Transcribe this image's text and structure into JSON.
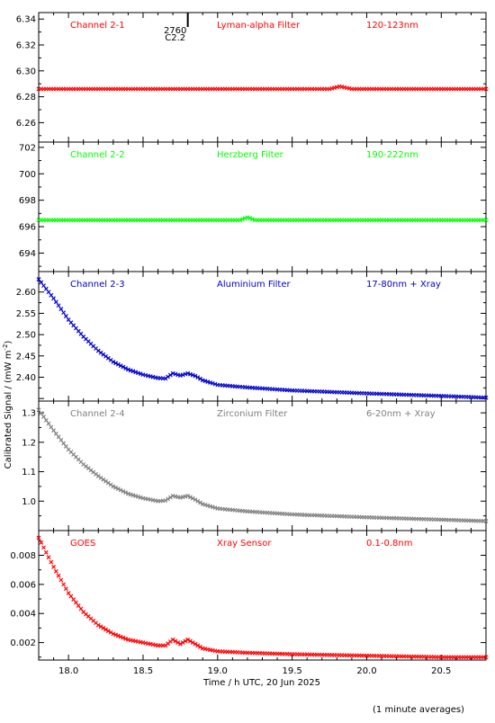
{
  "figure": {
    "ylabel": "Calibrated Signal / (mW m",
    "ylabel_sup": "-2",
    "ylabel_close": ")",
    "xlabel": "Time / h UTC, 20 Jun 2025",
    "footnote": "(1 minute averages)",
    "flare_marker": {
      "x": 18.8,
      "label_top": "2760",
      "label_bottom": "C2.2"
    }
  },
  "chart_data": [
    {
      "type": "scatter",
      "panel": "Channel 2-1",
      "labels": [
        "Channel 2-1",
        "Lyman-alpha Filter",
        "120-123nm"
      ],
      "color": "#ff0000",
      "xlim": [
        17.8,
        20.8
      ],
      "ylim": [
        6.245,
        6.345
      ],
      "yticks": [
        6.26,
        6.28,
        6.3,
        6.32,
        6.34
      ],
      "ytick_labels": [
        "6.26",
        "6.28",
        "6.30",
        "6.32",
        "6.34"
      ],
      "series": [
        {
          "x": [
            17.8,
            18.5,
            19.0,
            19.5,
            19.75,
            19.82,
            19.9,
            20.2,
            20.8
          ],
          "y": [
            6.286,
            6.286,
            6.286,
            6.286,
            6.286,
            6.288,
            6.286,
            6.286,
            6.286
          ]
        }
      ]
    },
    {
      "type": "scatter",
      "panel": "Channel 2-2",
      "labels": [
        "Channel 2-2",
        "Herzberg Filter",
        "190-222nm"
      ],
      "color": "#00ff00",
      "xlim": [
        17.8,
        20.8
      ],
      "ylim": [
        692.6,
        702.4
      ],
      "yticks": [
        694,
        696,
        698,
        700,
        702
      ],
      "ytick_labels": [
        "694",
        "696",
        "698",
        "700",
        "702"
      ],
      "series": [
        {
          "x": [
            17.8,
            18.5,
            19.15,
            19.2,
            19.25,
            19.6,
            20.0,
            20.8
          ],
          "y": [
            696.5,
            696.5,
            696.5,
            696.7,
            696.5,
            696.5,
            696.5,
            696.5
          ]
        }
      ]
    },
    {
      "type": "scatter",
      "panel": "Channel 2-3",
      "labels": [
        "Channel 2-3",
        "Aluminium Filter",
        "17-80nm + Xray"
      ],
      "color": "#0000cc",
      "xlim": [
        17.8,
        20.8
      ],
      "ylim": [
        2.344,
        2.648
      ],
      "yticks": [
        2.4,
        2.45,
        2.5,
        2.55,
        2.6
      ],
      "ytick_labels": [
        "2.40",
        "2.45",
        "2.50",
        "2.55",
        "2.60"
      ],
      "series": [
        {
          "x": [
            17.8,
            17.9,
            18.0,
            18.1,
            18.2,
            18.3,
            18.4,
            18.5,
            18.6,
            18.65,
            18.7,
            18.75,
            18.8,
            18.85,
            18.9,
            19.0,
            19.2,
            19.5,
            20.0,
            20.5,
            20.8
          ],
          "y": [
            2.63,
            2.585,
            2.535,
            2.495,
            2.462,
            2.436,
            2.418,
            2.406,
            2.398,
            2.397,
            2.409,
            2.404,
            2.409,
            2.403,
            2.393,
            2.382,
            2.376,
            2.369,
            2.362,
            2.356,
            2.352
          ]
        }
      ]
    },
    {
      "type": "scatter",
      "panel": "Channel 2-4",
      "labels": [
        "Channel 2-4",
        "Zirconium Filter",
        "6-20nm + Xray"
      ],
      "color": "#808080",
      "xlim": [
        17.8,
        20.8
      ],
      "ylim": [
        0.9,
        1.34
      ],
      "yticks": [
        1.0,
        1.1,
        1.2,
        1.3
      ],
      "ytick_labels": [
        "1.0",
        "1.1",
        "1.2",
        "1.3"
      ],
      "series": [
        {
          "x": [
            17.8,
            17.9,
            18.0,
            18.1,
            18.2,
            18.3,
            18.4,
            18.5,
            18.6,
            18.65,
            18.7,
            18.75,
            18.8,
            18.85,
            18.9,
            19.0,
            19.2,
            19.5,
            20.0,
            20.5,
            20.8
          ],
          "y": [
            1.31,
            1.24,
            1.175,
            1.125,
            1.085,
            1.05,
            1.025,
            1.01,
            1.0,
            1.002,
            1.018,
            1.012,
            1.018,
            1.005,
            0.99,
            0.975,
            0.965,
            0.955,
            0.945,
            0.937,
            0.932
          ]
        }
      ]
    },
    {
      "type": "scatter",
      "panel": "GOES",
      "labels": [
        "GOES",
        "Xray Sensor",
        "0.1-0.8nm"
      ],
      "color": "#ff0000",
      "xlim": [
        17.8,
        20.8
      ],
      "ylim": [
        0.0008,
        0.0097
      ],
      "yticks": [
        0.002,
        0.004,
        0.006,
        0.008
      ],
      "ytick_labels": [
        "0.002",
        "0.004",
        "0.006",
        "0.008"
      ],
      "series": [
        {
          "x": [
            17.8,
            17.9,
            18.0,
            18.1,
            18.2,
            18.3,
            18.4,
            18.5,
            18.6,
            18.65,
            18.7,
            18.75,
            18.8,
            18.85,
            18.9,
            19.0,
            19.2,
            19.5,
            20.0,
            20.5,
            20.8
          ],
          "y": [
            0.0092,
            0.0072,
            0.0054,
            0.0041,
            0.0032,
            0.0026,
            0.0022,
            0.002,
            0.0018,
            0.0018,
            0.0022,
            0.0019,
            0.0022,
            0.0019,
            0.0016,
            0.0014,
            0.0013,
            0.0012,
            0.0011,
            0.001,
            0.001
          ]
        }
      ]
    }
  ],
  "xaxis": {
    "ticks": [
      18.0,
      18.5,
      19.0,
      19.5,
      20.0,
      20.5
    ],
    "tick_labels": [
      "18.0",
      "18.5",
      "19.0",
      "19.5",
      "20.0",
      "20.5"
    ]
  }
}
